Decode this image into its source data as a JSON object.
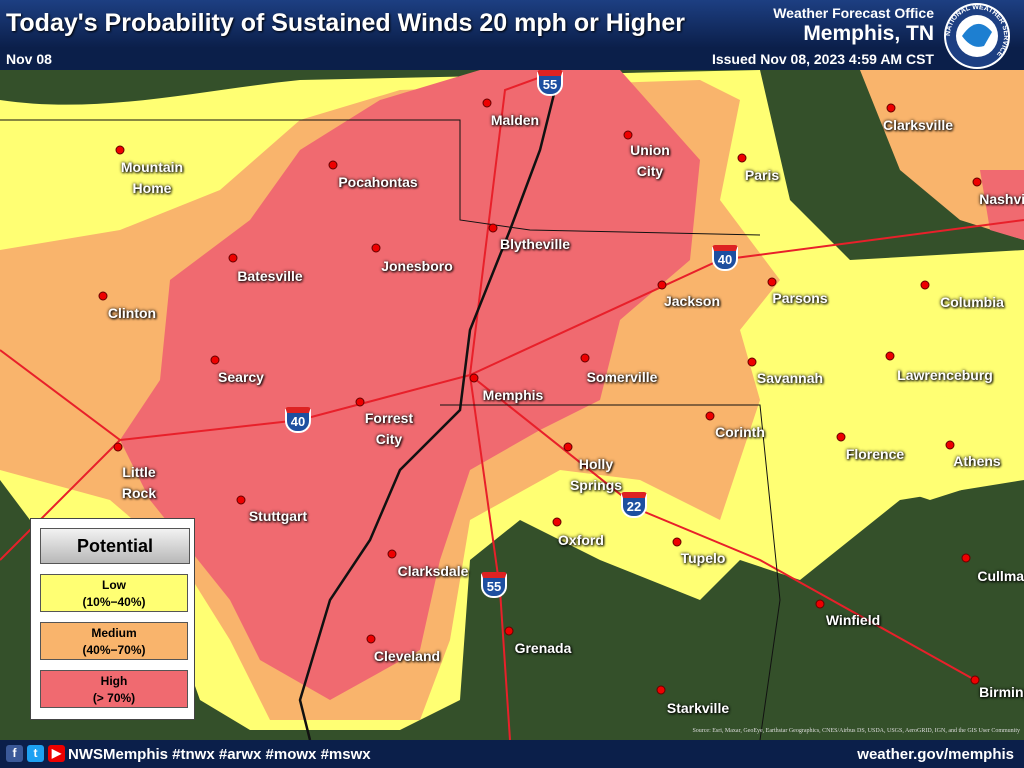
{
  "header": {
    "title": "Today's Probability of Sustained Winds 20 mph or Higher",
    "date": "Nov 08",
    "office": "Weather Forecast Office",
    "location": "Memphis, TN",
    "issued": "Issued Nov 08, 2023 4:59 AM CST",
    "logo_text": "NATIONAL WEATHER SERVICE"
  },
  "legend": {
    "title": "Potential",
    "items": [
      {
        "label": "Low",
        "range": "(10%−40%)",
        "color": "#ffff73"
      },
      {
        "label": "Medium",
        "range": "(40%−70%)",
        "color": "#f9b46c"
      },
      {
        "label": "High",
        "range": "(> 70%)",
        "color": "#f06a70"
      }
    ]
  },
  "cities": [
    {
      "name": "Malden"
    },
    {
      "name": "Union City"
    },
    {
      "name": "Paris"
    },
    {
      "name": "Clarksville"
    },
    {
      "name": "Nashville"
    },
    {
      "name": "Mountain Home"
    },
    {
      "name": "Pocahontas"
    },
    {
      "name": "Blytheville"
    },
    {
      "name": "Batesville"
    },
    {
      "name": "Jonesboro"
    },
    {
      "name": "Jackson"
    },
    {
      "name": "Parsons"
    },
    {
      "name": "Clinton"
    },
    {
      "name": "Columbia"
    },
    {
      "name": "Searcy"
    },
    {
      "name": "Memphis"
    },
    {
      "name": "Somerville"
    },
    {
      "name": "Savannah"
    },
    {
      "name": "Lawrenceburg"
    },
    {
      "name": "Forrest City"
    },
    {
      "name": "Corinth"
    },
    {
      "name": "Florence"
    },
    {
      "name": "Athens"
    },
    {
      "name": "Little Rock"
    },
    {
      "name": "Holly Springs"
    },
    {
      "name": "Stuttgart"
    },
    {
      "name": "Oxford"
    },
    {
      "name": "Tupelo"
    },
    {
      "name": "Clarksdale"
    },
    {
      "name": "Cullman"
    },
    {
      "name": "Winfield"
    },
    {
      "name": "Cleveland"
    },
    {
      "name": "Grenada"
    },
    {
      "name": "Birmingham"
    },
    {
      "name": "Starkville"
    }
  ],
  "interstates": [
    "55",
    "40",
    "40",
    "22",
    "55"
  ],
  "footer": {
    "social": "NWSMemphis #tnwx #arwx #mowx #mswx",
    "website": "weather.gov/memphis",
    "source": "Source: Esri, Maxar, GeoEye, Earthstar Geographics, CNES/Airbus DS, USDA, USGS, AeroGRID, IGN, and the GIS User Community"
  }
}
